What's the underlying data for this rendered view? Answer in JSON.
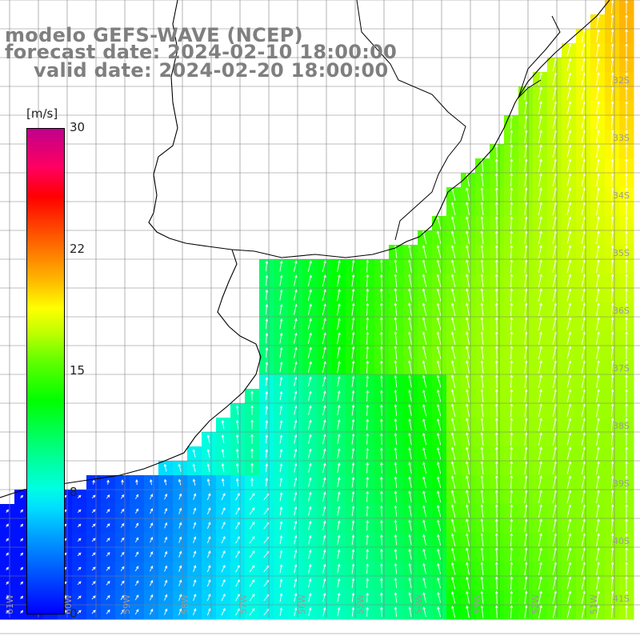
{
  "title": {
    "line1": "modelo GEFS-WAVE (NCEP)",
    "line2": "forecast date: 2024-02-10 18:00:00",
    "line3": "valid date: 2024-02-20 18:00:00"
  },
  "colorbar": {
    "unit": "[m/s]",
    "ticks": [
      "30",
      "22",
      "15",
      "8",
      "0"
    ],
    "tick_values": [
      30,
      22,
      15,
      8,
      0
    ],
    "range": [
      0,
      30
    ]
  },
  "map": {
    "variable": "wind speed with direction arrows",
    "lat_labels": [
      "32S",
      "33S",
      "34S",
      "35S",
      "36S",
      "37S",
      "38S",
      "39S",
      "40S",
      "41S"
    ],
    "lon_labels": [
      "61W",
      "60W",
      "59W",
      "58W",
      "57W",
      "56W",
      "55W",
      "54W",
      "53W",
      "52W",
      "51W"
    ],
    "colors": {
      "land": "#ffffff",
      "coast": "#000000",
      "grid": "#808080",
      "arrows": "#ffffff",
      "title_text": "#7f7f7f"
    }
  }
}
